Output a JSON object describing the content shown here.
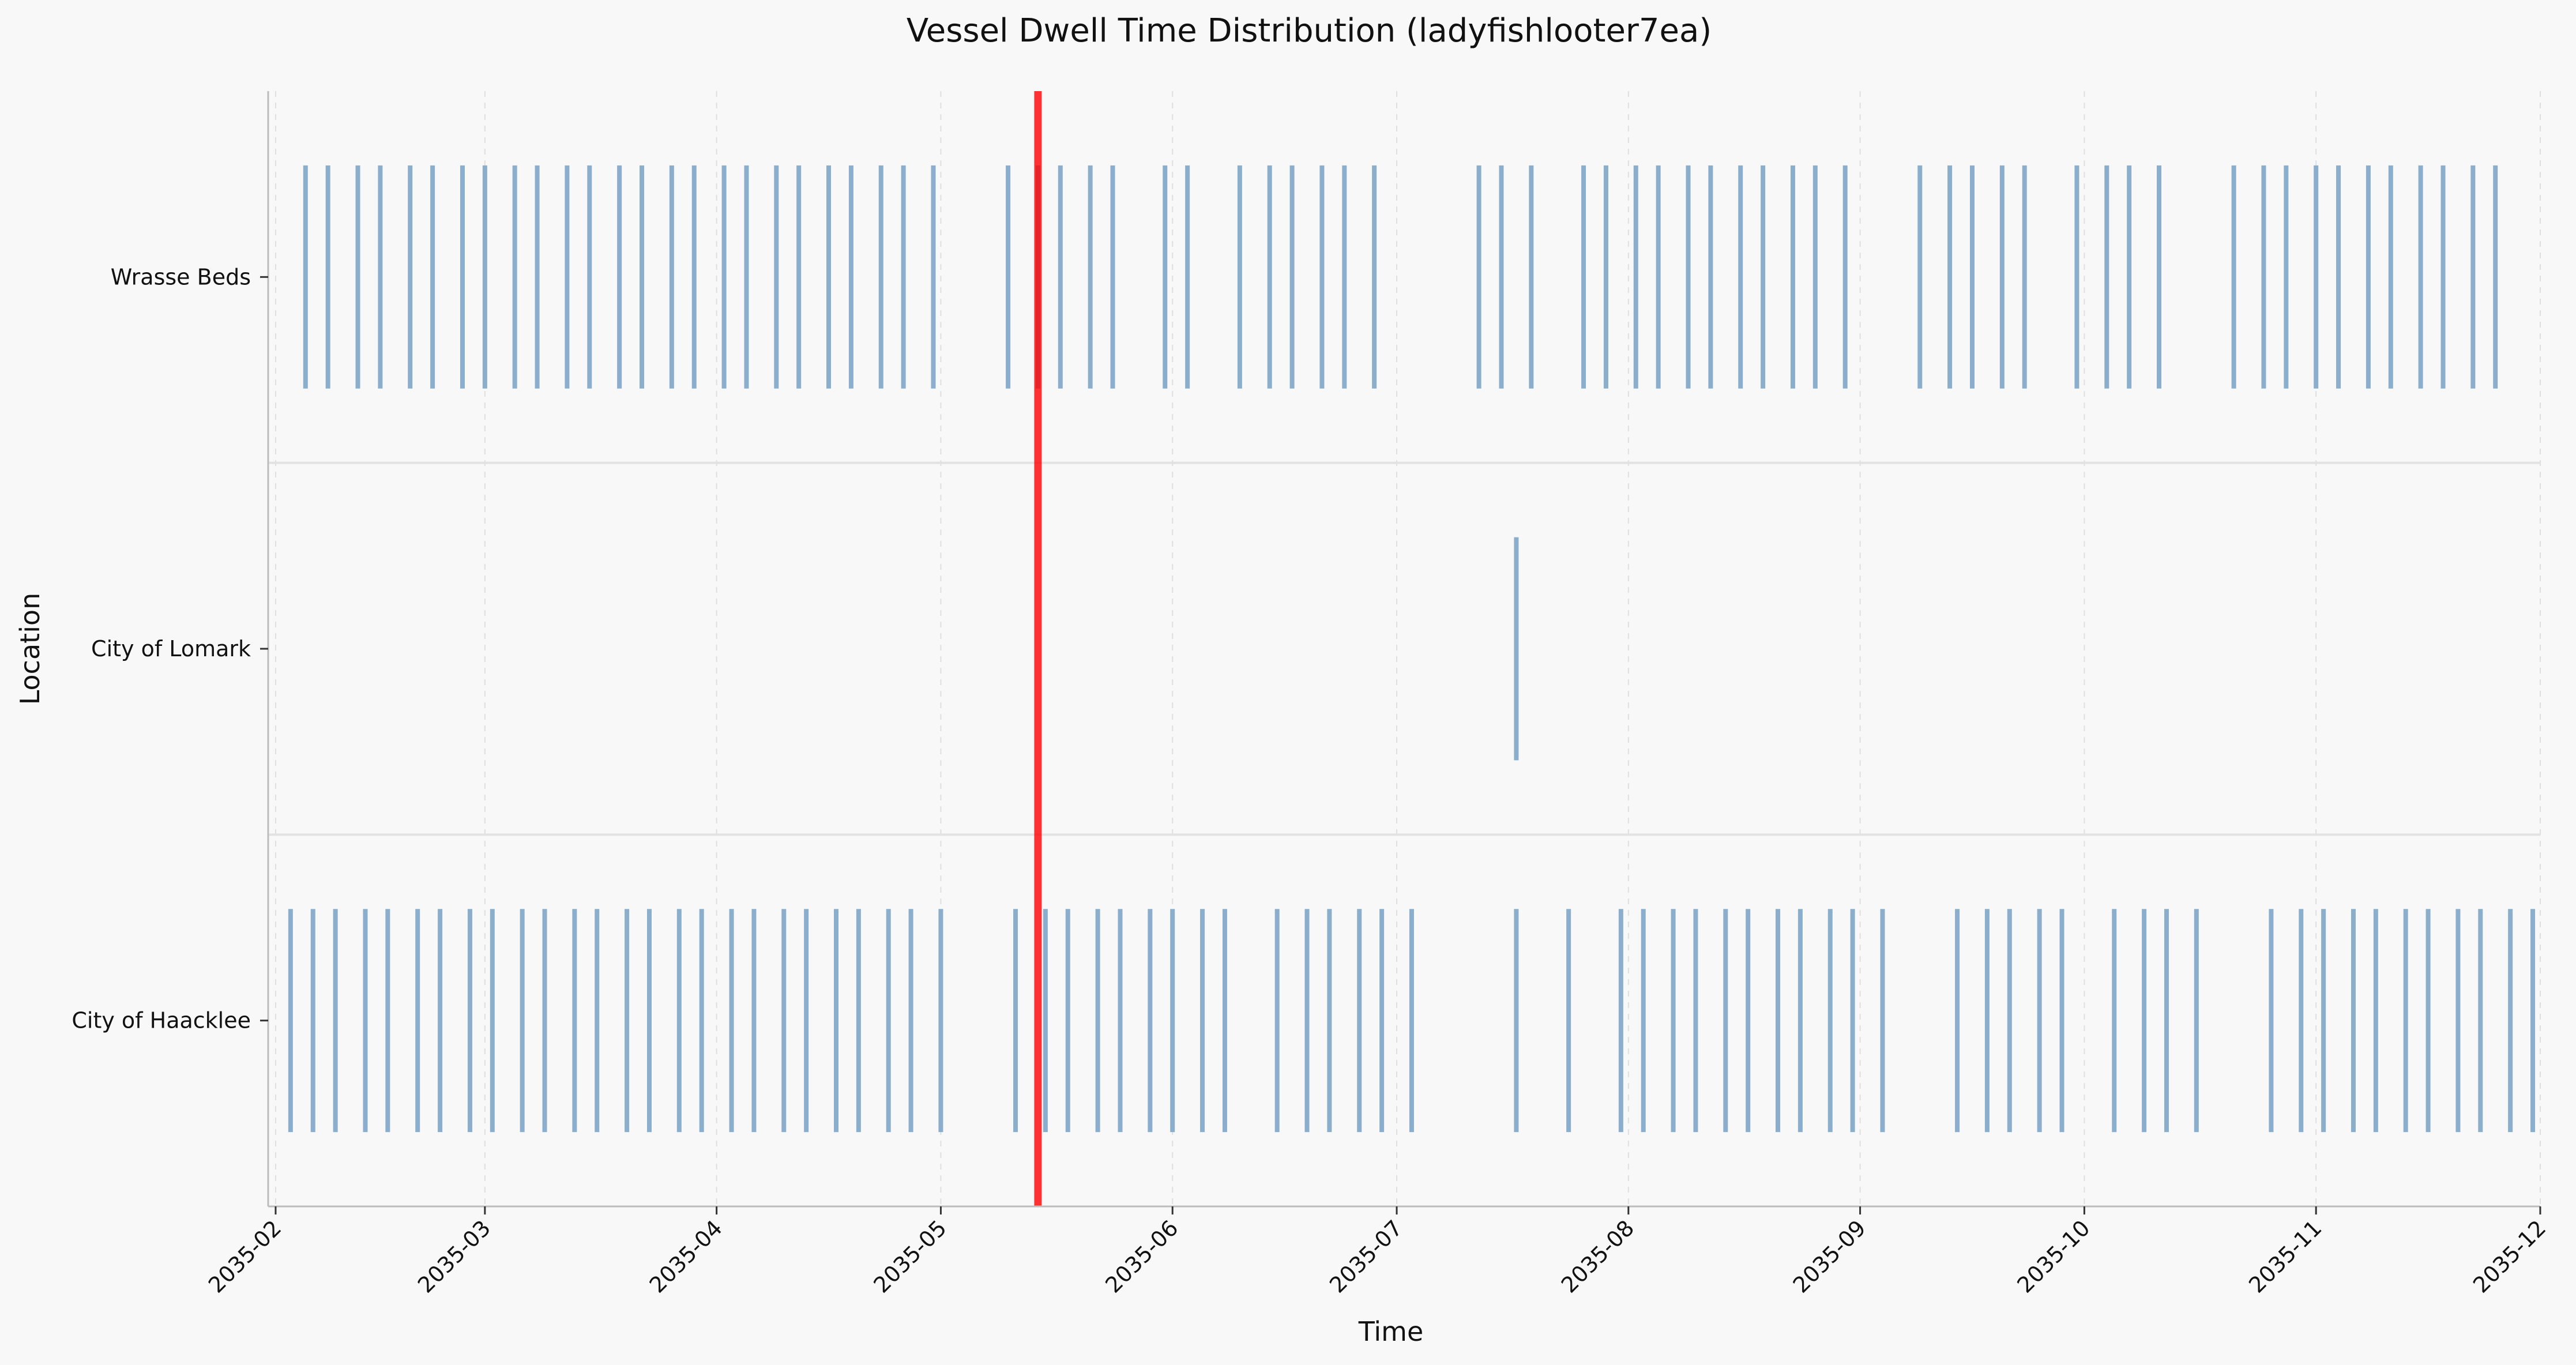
{
  "chart_data": {
    "type": "event-timeline",
    "title": "Vessel Dwell Time Distribution (ladyfishlooter7ea)",
    "xlabel": "Time",
    "ylabel": "Location",
    "x_ticks": [
      "2035-02",
      "2035-03",
      "2035-04",
      "2035-05",
      "2035-06",
      "2035-07",
      "2035-08",
      "2035-09",
      "2035-10",
      "2035-11",
      "2035-12"
    ],
    "xlim": [
      "2035-01-31",
      "2035-12-01"
    ],
    "categories": [
      "Wrasse Beds",
      "City of Lomark",
      "City of Haacklee"
    ],
    "grid": true,
    "marker": {
      "date": "2035-05-14",
      "color": "#ff0000"
    },
    "event_color": "#8aaecb",
    "series": [
      {
        "location": "Wrasse Beds",
        "events": [
          "2035-02-05",
          "2035-02-08",
          "2035-02-12",
          "2035-02-15",
          "2035-02-19",
          "2035-02-22",
          "2035-02-26",
          "2035-03-01",
          "2035-03-05",
          "2035-03-08",
          "2035-03-12",
          "2035-03-15",
          "2035-03-19",
          "2035-03-22",
          "2035-03-26",
          "2035-03-29",
          "2035-04-02",
          "2035-04-05",
          "2035-04-09",
          "2035-04-12",
          "2035-04-16",
          "2035-04-19",
          "2035-04-23",
          "2035-04-26",
          "2035-04-30",
          "2035-05-10",
          "2035-05-14",
          "2035-05-17",
          "2035-05-21",
          "2035-05-24",
          "2035-05-31",
          "2035-06-03",
          "2035-06-10",
          "2035-06-14",
          "2035-06-17",
          "2035-06-21",
          "2035-06-24",
          "2035-06-28",
          "2035-07-12",
          "2035-07-15",
          "2035-07-19",
          "2035-07-26",
          "2035-07-29",
          "2035-08-02",
          "2035-08-05",
          "2035-08-09",
          "2035-08-12",
          "2035-08-16",
          "2035-08-19",
          "2035-08-23",
          "2035-08-26",
          "2035-08-30",
          "2035-09-09",
          "2035-09-13",
          "2035-09-16",
          "2035-09-20",
          "2035-09-23",
          "2035-09-30",
          "2035-10-04",
          "2035-10-07",
          "2035-10-11",
          "2035-10-21",
          "2035-10-25",
          "2035-10-28",
          "2035-11-01",
          "2035-11-04",
          "2035-11-08",
          "2035-11-11",
          "2035-11-15",
          "2035-11-18",
          "2035-11-22",
          "2035-11-25"
        ]
      },
      {
        "location": "City of Lomark",
        "events": [
          "2035-07-17"
        ]
      },
      {
        "location": "City of Haacklee",
        "events": [
          "2035-02-03",
          "2035-02-06",
          "2035-02-09",
          "2035-02-13",
          "2035-02-16",
          "2035-02-20",
          "2035-02-23",
          "2035-02-27",
          "2035-03-02",
          "2035-03-06",
          "2035-03-09",
          "2035-03-13",
          "2035-03-16",
          "2035-03-20",
          "2035-03-23",
          "2035-03-27",
          "2035-03-30",
          "2035-04-03",
          "2035-04-06",
          "2035-04-10",
          "2035-04-13",
          "2035-04-17",
          "2035-04-20",
          "2035-04-24",
          "2035-04-27",
          "2035-05-01",
          "2035-05-11",
          "2035-05-15",
          "2035-05-18",
          "2035-05-22",
          "2035-05-25",
          "2035-05-29",
          "2035-06-01",
          "2035-06-05",
          "2035-06-08",
          "2035-06-15",
          "2035-06-19",
          "2035-06-22",
          "2035-06-26",
          "2035-06-29",
          "2035-07-03",
          "2035-07-17",
          "2035-07-24",
          "2035-07-31",
          "2035-08-03",
          "2035-08-07",
          "2035-08-10",
          "2035-08-14",
          "2035-08-17",
          "2035-08-21",
          "2035-08-24",
          "2035-08-28",
          "2035-08-31",
          "2035-09-04",
          "2035-09-14",
          "2035-09-18",
          "2035-09-21",
          "2035-09-25",
          "2035-09-28",
          "2035-10-05",
          "2035-10-09",
          "2035-10-12",
          "2035-10-16",
          "2035-10-26",
          "2035-10-30",
          "2035-11-02",
          "2035-11-06",
          "2035-11-09",
          "2035-11-13",
          "2035-11-16",
          "2035-11-20",
          "2035-11-23",
          "2035-11-27",
          "2035-11-30"
        ]
      }
    ]
  }
}
